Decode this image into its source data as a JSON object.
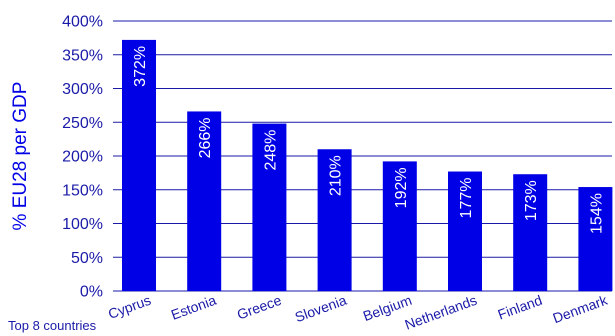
{
  "footnote": "Top 8 countries",
  "chart_data": {
    "type": "bar",
    "title": "",
    "xlabel": "",
    "ylabel": "% EU28 per GDP",
    "categories": [
      "Cyprus",
      "Estonia",
      "Greece",
      "Slovenia",
      "Belgium",
      "Netherlands",
      "Finland",
      "Denmark"
    ],
    "values": [
      372,
      266,
      248,
      210,
      192,
      177,
      173,
      154
    ],
    "value_labels": [
      "372%",
      "266%",
      "248%",
      "210%",
      "192%",
      "177%",
      "173%",
      "154%"
    ],
    "y_ticks": [
      0,
      50,
      100,
      150,
      200,
      250,
      300,
      350,
      400
    ],
    "y_tick_labels": [
      "0%",
      "50%",
      "100%",
      "150%",
      "200%",
      "250%",
      "300%",
      "350%",
      "400%"
    ],
    "ylim": [
      0,
      400
    ],
    "grid": true,
    "legend": "none",
    "colors": {
      "bar": "#0000e6",
      "text": "#1a1aa8",
      "grid": "#1a1aa8",
      "label_inside": "#ffffff"
    }
  }
}
